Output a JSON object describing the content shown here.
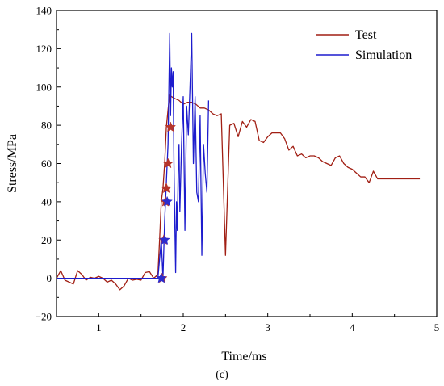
{
  "chart_data": {
    "type": "line",
    "xlabel": "Time/ms",
    "ylabel": "Stress/MPa",
    "caption": "(c)",
    "xlim": [
      0.5,
      5.0
    ],
    "ylim": [
      -20,
      140
    ],
    "xticks": [
      1,
      2,
      3,
      4,
      5
    ],
    "yticks": [
      -20,
      0,
      20,
      40,
      60,
      80,
      100,
      120,
      140
    ],
    "grid": false,
    "legend_position": "top-right",
    "series": [
      {
        "name": "Test",
        "color": "#a11f14",
        "x": [
          0.5,
          0.55,
          0.6,
          0.65,
          0.7,
          0.75,
          0.8,
          0.85,
          0.9,
          0.95,
          1.0,
          1.05,
          1.1,
          1.15,
          1.2,
          1.25,
          1.3,
          1.35,
          1.4,
          1.45,
          1.5,
          1.55,
          1.6,
          1.65,
          1.7,
          1.72,
          1.74,
          1.76,
          1.78,
          1.8,
          1.82,
          1.84,
          1.86,
          1.9,
          1.95,
          2.0,
          2.05,
          2.1,
          2.15,
          2.2,
          2.25,
          2.3,
          2.35,
          2.4,
          2.45,
          2.5,
          2.55,
          2.6,
          2.65,
          2.7,
          2.75,
          2.8,
          2.85,
          2.9,
          2.95,
          3.0,
          3.05,
          3.1,
          3.15,
          3.2,
          3.25,
          3.3,
          3.35,
          3.4,
          3.45,
          3.5,
          3.55,
          3.6,
          3.65,
          3.7,
          3.75,
          3.8,
          3.85,
          3.9,
          3.95,
          4.0,
          4.05,
          4.1,
          4.15,
          4.2,
          4.25,
          4.3,
          4.35,
          4.4,
          4.45,
          4.5,
          4.55,
          4.6,
          4.65,
          4.7,
          4.75,
          4.8
        ],
        "y": [
          0,
          4,
          -1,
          -2,
          -3,
          4,
          2,
          -1,
          0.5,
          0,
          1,
          0,
          -2,
          -1,
          -3,
          -6,
          -4,
          0,
          -1,
          -0.5,
          -1,
          3,
          3.5,
          0,
          2,
          20,
          40,
          47,
          60,
          79,
          88,
          96,
          95,
          94,
          93,
          91,
          92,
          92,
          91,
          89,
          89,
          88,
          86,
          85,
          86,
          12,
          80,
          81,
          74,
          82,
          79,
          83,
          82,
          72,
          71,
          74,
          76,
          76,
          76,
          73,
          67,
          69,
          64,
          65,
          63,
          64,
          64,
          63,
          61,
          60,
          59,
          63,
          64,
          60,
          58,
          57,
          55,
          53,
          53,
          50,
          56,
          52,
          52,
          52,
          52,
          52,
          52,
          52,
          52,
          52,
          52,
          52
        ],
        "stars_x": [
          1.75,
          1.77,
          1.79,
          1.8,
          1.82,
          1.85
        ],
        "stars_y": [
          0,
          20,
          40,
          47,
          60,
          79
        ]
      },
      {
        "name": "Simulation",
        "color": "#1d1ccd",
        "x": [
          0.5,
          1.0,
          1.5,
          1.7,
          1.72,
          1.74,
          1.76,
          1.78,
          1.8,
          1.82,
          1.84,
          1.85,
          1.86,
          1.87,
          1.88,
          1.89,
          1.9,
          1.91,
          1.92,
          1.93,
          1.94,
          1.95,
          1.96,
          1.98,
          2.0,
          2.02,
          2.04,
          2.06,
          2.08,
          2.1,
          2.12,
          2.14,
          2.16,
          2.18,
          2.2,
          2.22,
          2.24,
          2.26,
          2.28,
          2.3
        ],
        "y": [
          0,
          0,
          0,
          0,
          10,
          20,
          0,
          30,
          50,
          70,
          128,
          85,
          110,
          100,
          108,
          60,
          30,
          3,
          40,
          25,
          55,
          70,
          35,
          70,
          95,
          25,
          90,
          75,
          100,
          128,
          60,
          95,
          45,
          40,
          85,
          12,
          70,
          55,
          45,
          93
        ],
        "stars_x": [
          1.74,
          1.78,
          1.81
        ],
        "stars_y": [
          0,
          20,
          40
        ]
      }
    ]
  }
}
